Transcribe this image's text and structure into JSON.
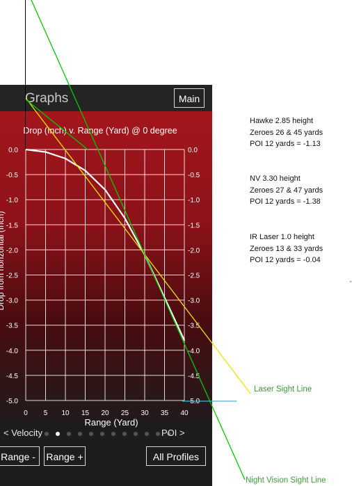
{
  "app": {
    "title": "Graphs",
    "main_button": "Main"
  },
  "chart_data": {
    "type": "line",
    "title": "Drop (Inch) v. Range (Yard) @ 0 degree",
    "xlabel": "Range (Yard)",
    "ylabel": "Drop from horizontal (Inch)",
    "xlim": [
      0,
      40
    ],
    "ylim": [
      -5.0,
      0.0
    ],
    "x_ticks": [
      "0",
      "5",
      "10",
      "15",
      "20",
      "25",
      "30",
      "35",
      "40"
    ],
    "y_ticks": [
      "0.0",
      "-0.5",
      "-1.0",
      "-1.5",
      "-2.0",
      "-2.5",
      "-3.0",
      "-3.5",
      "-4.0",
      "-4.5",
      "-5.0"
    ],
    "grid": true,
    "series": [
      {
        "x": [
          0,
          5,
          10,
          15,
          20,
          25,
          30,
          35,
          40
        ],
        "y": [
          0.0,
          -0.05,
          -0.18,
          -0.42,
          -0.8,
          -1.37,
          -2.1,
          -2.95,
          -3.8
        ]
      }
    ]
  },
  "pager": {
    "prev_label": "< Velocity",
    "next_label": "POI >",
    "page_count": 12,
    "active_page": 1
  },
  "buttons": {
    "range_minus": "Range -",
    "range_plus": "Range +",
    "all_profiles": "All Profiles"
  },
  "annotations": {
    "notes": [
      {
        "lines": [
          "Hawke 2.85 height",
          "Zeroes 26 & 45 yards",
          "POI 12 yards = -1.13"
        ]
      },
      {
        "lines": [
          "NV 3.30 height",
          "Zeroes 27 & 47 yards",
          "POI 12 yards = -1.38"
        ]
      },
      {
        "lines": [
          "IR Laser 1.0 height",
          "Zeroes 13 & 33 yards",
          "POI 12 yards = -0.04"
        ]
      }
    ],
    "laser_label": "Laser Sight Line",
    "nv_label": "Night Vision Sight Line",
    "colors": {
      "laser_line": "#e8e800",
      "nv_line": "#00cc00",
      "cyan_marker": "#33bbdd",
      "label_green": "#3c9a3c"
    }
  }
}
